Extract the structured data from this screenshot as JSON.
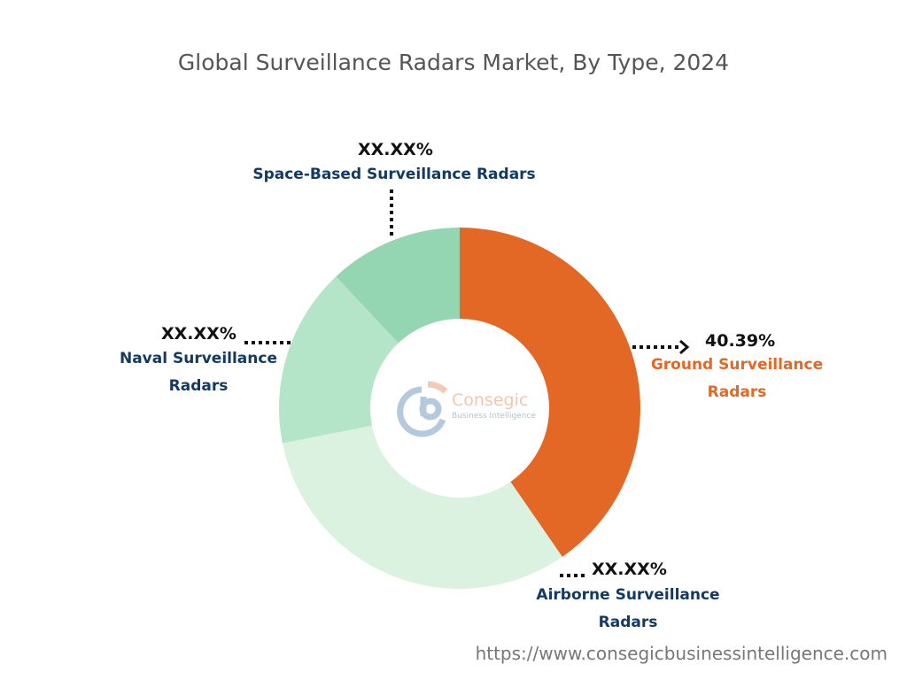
{
  "chart_data": {
    "type": "pie",
    "variant": "donut",
    "title": "Global Surveillance Radars Market, By Type, 2024",
    "start_angle": "top, clockwise",
    "slices": [
      {
        "name": "Ground Surveillance Radars",
        "value": 40.39,
        "label": "40.39%",
        "color": "#E36725",
        "label_color": "#E36725"
      },
      {
        "name": "Airborne Surveillance Radars",
        "value": 31.5,
        "label": "XX.XX%",
        "color": "#DAF2DF",
        "label_color": "#123A63"
      },
      {
        "name": "Naval Surveillance Radars",
        "value": 16.1,
        "label": "XX.XX%",
        "color": "#B4E5C8",
        "label_color": "#123A63"
      },
      {
        "name": "Space-Based Surveillance Radars",
        "value": 12.01,
        "label": "XX.XX%",
        "color": "#94D5B2",
        "label_color": "#123A63"
      }
    ]
  },
  "logo": {
    "name": "Consegic",
    "tagline": "Business Intelligence"
  },
  "footer": {
    "url": "https://www.consegicbusinessintelligence.com"
  }
}
